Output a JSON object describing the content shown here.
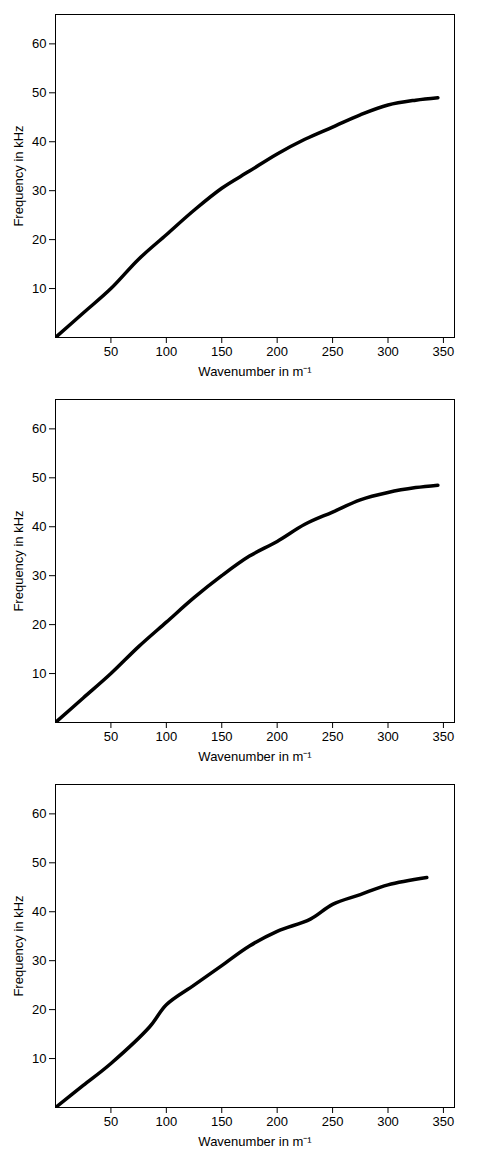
{
  "chart_data": [
    {
      "type": "line",
      "x_label": "Wavenumber in m⁻¹",
      "y_label": "Frequency in kHz",
      "x": [
        0,
        25,
        50,
        75,
        100,
        125,
        150,
        175,
        200,
        225,
        250,
        275,
        300,
        325,
        345
      ],
      "values": [
        0,
        5,
        10,
        16,
        21,
        26,
        30.5,
        34,
        37.5,
        40.5,
        43,
        45.5,
        47.5,
        48.5,
        49
      ],
      "color": "#000000",
      "xlim": [
        0,
        360
      ],
      "ylim": [
        0,
        66
      ],
      "xticks": [
        50,
        100,
        150,
        200,
        250,
        300,
        350
      ],
      "yticks": [
        10,
        20,
        30,
        40,
        50,
        60
      ],
      "grid": false
    },
    {
      "type": "line",
      "x_label": "Wavenumber in m⁻¹",
      "y_label": "Frequency in kHz",
      "x": [
        0,
        25,
        50,
        75,
        100,
        125,
        150,
        175,
        200,
        225,
        250,
        275,
        300,
        325,
        345
      ],
      "values": [
        0,
        5,
        10,
        15.5,
        20.5,
        25.5,
        30,
        34,
        37,
        40.5,
        43,
        45.5,
        47,
        48,
        48.5
      ],
      "color": "#000000",
      "xlim": [
        0,
        360
      ],
      "ylim": [
        0,
        66
      ],
      "xticks": [
        50,
        100,
        150,
        200,
        250,
        300,
        350
      ],
      "yticks": [
        10,
        20,
        30,
        40,
        50,
        60
      ],
      "grid": false
    },
    {
      "type": "line",
      "x_label": "Wavenumber in m⁻¹",
      "y_label": "Frequency in kHz",
      "x": [
        0,
        25,
        50,
        85,
        100,
        125,
        150,
        175,
        200,
        230,
        250,
        275,
        300,
        335
      ],
      "values": [
        0,
        4.5,
        9,
        16.5,
        21,
        25,
        29,
        33,
        36,
        38.5,
        41.5,
        43.5,
        45.5,
        47
      ],
      "color": "#000000",
      "xlim": [
        0,
        360
      ],
      "ylim": [
        0,
        66
      ],
      "xticks": [
        50,
        100,
        150,
        200,
        250,
        300,
        350
      ],
      "yticks": [
        10,
        20,
        30,
        40,
        50,
        60
      ],
      "grid": false
    }
  ]
}
